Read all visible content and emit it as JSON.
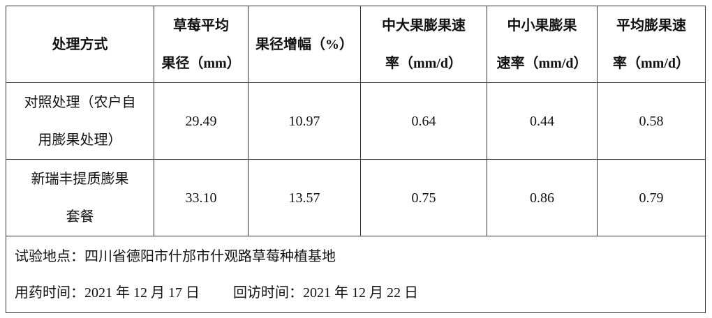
{
  "table": {
    "header": [
      [
        "处理方式"
      ],
      [
        "草莓平均",
        "果径（mm）"
      ],
      [
        "果径增幅（%）"
      ],
      [
        "中大果膨果速",
        "率（mm/d）"
      ],
      [
        "中小果膨果",
        "速率（mm/d）"
      ],
      [
        "平均膨果速",
        "率（mm/d）"
      ]
    ],
    "rows": [
      [
        [
          "对照处理（农户自",
          "用膨果处理）"
        ],
        [
          "29.49"
        ],
        [
          "10.97"
        ],
        [
          "0.64"
        ],
        [
          "0.44"
        ],
        [
          "0.58"
        ]
      ],
      [
        [
          "新瑞丰提质膨果",
          "套餐"
        ],
        [
          "33.10"
        ],
        [
          "13.57"
        ],
        [
          "0.75"
        ],
        [
          "0.86"
        ],
        [
          "0.79"
        ]
      ]
    ],
    "footer": {
      "location": "试验地点：四川省德阳市什邡市什观路草莓种植基地",
      "apply_date": "用药时间：2021 年 12 月 17 日",
      "visit_date": "回访时间：2021 年 12 月 22 日"
    }
  }
}
